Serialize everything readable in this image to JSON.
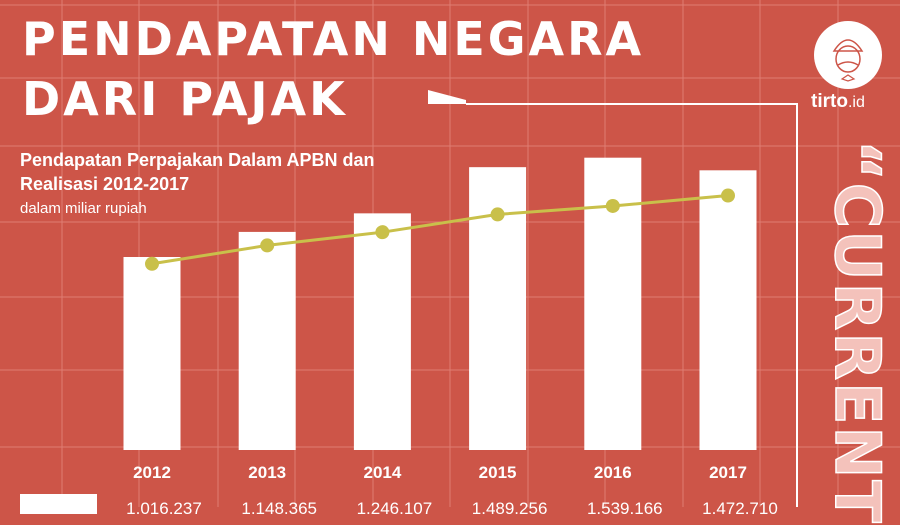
{
  "title_line1": "PENDAPATAN NEGARA",
  "title_line2": "DARI PAJAK",
  "subtitle_line1": "Pendapatan Perpajakan Dalam APBN dan",
  "subtitle_line2": "Realisasi 2012-2017",
  "unit": "dalam miliar rupiah",
  "brand": {
    "name": "tirto",
    "suffix": ".id"
  },
  "side_text": "“CURRENT",
  "colors": {
    "background": "#cd5548",
    "bars": "#ffffff",
    "line": "#c9c04a",
    "grid": "#e07d72"
  },
  "chart_data": {
    "type": "bar",
    "title": "Pendapatan Perpajakan Dalam APBN dan Realisasi 2012-2017",
    "ylabel": "dalam miliar rupiah",
    "categories": [
      "2012",
      "2013",
      "2014",
      "2015",
      "2016",
      "2017"
    ],
    "ylim": [
      0,
      1700000
    ],
    "grid": true,
    "series": [
      {
        "type": "bar",
        "values": [
          1016237,
          1148365,
          1246107,
          1489256,
          1539166,
          1472710
        ],
        "labels": [
          "1.016.237",
          "1.148.365",
          "1.246.107",
          "1.489.256",
          "1.539.166",
          "1.472.710"
        ]
      },
      {
        "type": "line",
        "values": [
          980500,
          1077300,
          1146900,
          1240400,
          1284900,
          1339800
        ]
      }
    ]
  }
}
